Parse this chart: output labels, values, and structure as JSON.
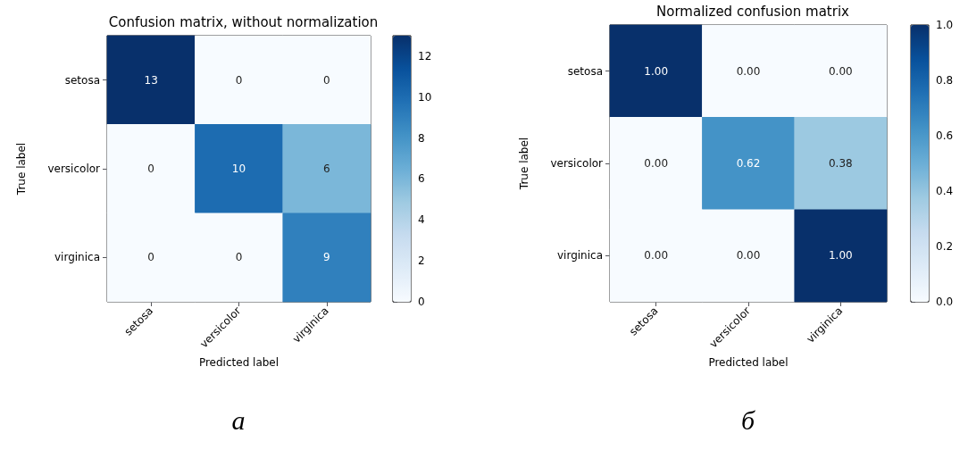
{
  "chart_data": [
    {
      "type": "heatmap",
      "title": "Confusion matrix, without normalization",
      "xlabel": "Predicted label",
      "ylabel": "True label",
      "categories": [
        "setosa",
        "versicolor",
        "virginica"
      ],
      "y_categories": [
        "setosa",
        "versicolor",
        "virginica"
      ],
      "cells": [
        [
          13,
          0,
          0
        ],
        [
          0,
          10,
          6
        ],
        [
          0,
          0,
          9
        ]
      ],
      "data_labels": true,
      "clim": [
        0,
        13
      ],
      "cticks": [
        0,
        2,
        4,
        6,
        8,
        10,
        12
      ],
      "annotations": [
        "а"
      ]
    },
    {
      "type": "heatmap",
      "title": "Normalized confusion matrix",
      "xlabel": "Predicted label",
      "ylabel": "True label",
      "categories": [
        "setosa",
        "versicolor",
        "virginica"
      ],
      "y_categories": [
        "setosa",
        "versicolor",
        "virginica"
      ],
      "cells": [
        [
          1,
          0,
          0
        ],
        [
          0,
          0.62,
          0.38
        ],
        [
          0,
          0,
          1
        ]
      ],
      "cell_labels": [
        [
          "1.00",
          "0.00",
          "0.00"
        ],
        [
          "0.00",
          "0.62",
          "0.38"
        ],
        [
          "0.00",
          "0.00",
          "1.00"
        ]
      ],
      "clim": [
        0,
        1
      ],
      "cticks": [
        {
          "value": 0,
          "label": "0.0"
        },
        {
          "value": 0.2,
          "label": "0.2"
        },
        {
          "value": 0.4,
          "label": "0.4"
        },
        {
          "value": 0.6,
          "label": "0.6"
        },
        {
          "value": 0.8,
          "label": "0.8"
        },
        {
          "value": 1,
          "label": "1.0"
        }
      ],
      "annotations": [
        "б"
      ]
    }
  ]
}
